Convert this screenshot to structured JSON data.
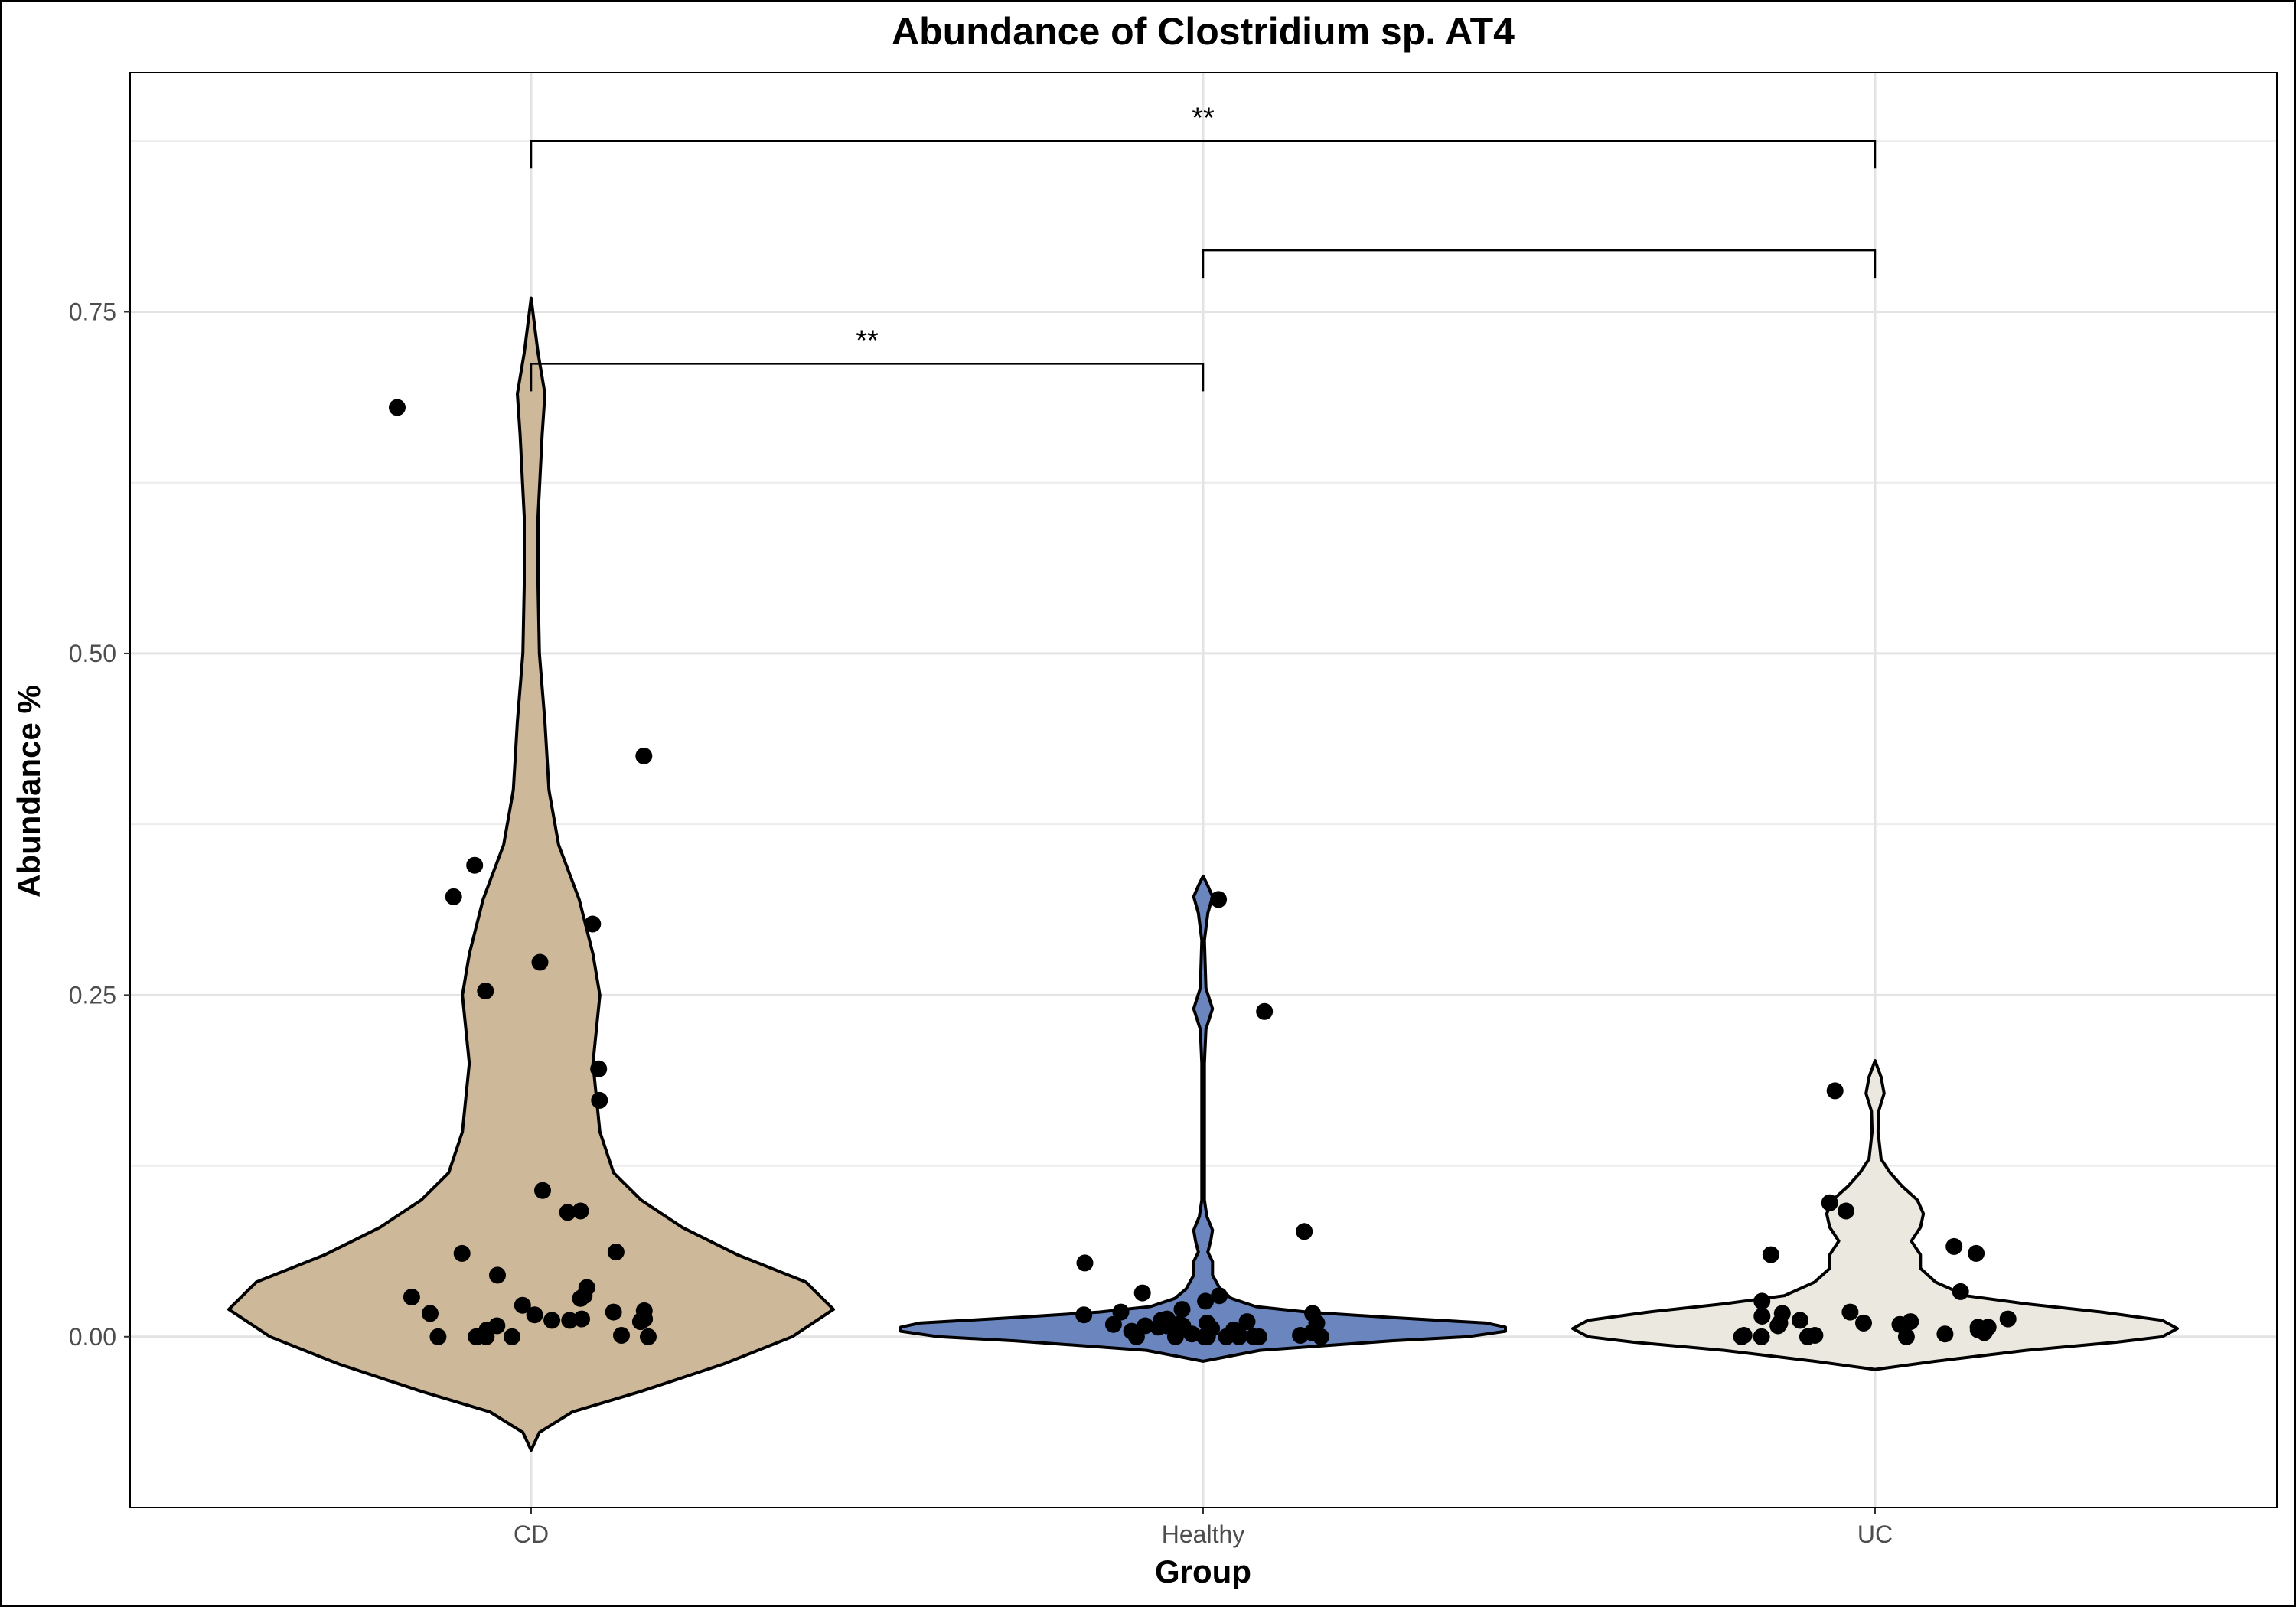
{
  "chart_data": {
    "type": "violin",
    "title": "Abundance of Clostridium sp. AT4",
    "xlabel": "Group",
    "ylabel": "Abundance %",
    "categories": [
      "CD",
      "Healthy",
      "UC"
    ],
    "ylim": [
      -0.125,
      0.925
    ],
    "yticks": [
      0.0,
      0.25,
      0.5,
      0.75
    ],
    "ytick_labels": [
      "0.00",
      "0.25",
      "0.50",
      "0.75"
    ],
    "grid": true,
    "legend": "none",
    "colors": {
      "CD": "#cdb899",
      "Healthy": "#6b86bf",
      "UC": "#ebe8e0"
    },
    "violins": [
      {
        "group": "CD",
        "range": [
          -0.083,
          0.76
        ],
        "profile": [
          [
            -0.083,
            0.0
          ],
          [
            -0.07,
            0.6
          ],
          [
            -0.055,
            3
          ],
          [
            -0.04,
            8
          ],
          [
            -0.02,
            14
          ],
          [
            0.0,
            19
          ],
          [
            0.02,
            22
          ],
          [
            0.04,
            20
          ],
          [
            0.06,
            15
          ],
          [
            0.08,
            11
          ],
          [
            0.1,
            8
          ],
          [
            0.12,
            6
          ],
          [
            0.15,
            5
          ],
          [
            0.2,
            4.5
          ],
          [
            0.25,
            5
          ],
          [
            0.28,
            4.5
          ],
          [
            0.32,
            3.5
          ],
          [
            0.36,
            2
          ],
          [
            0.4,
            1.3
          ],
          [
            0.45,
            1.0
          ],
          [
            0.5,
            0.6
          ],
          [
            0.55,
            0.5
          ],
          [
            0.6,
            0.5
          ],
          [
            0.66,
            0.8
          ],
          [
            0.69,
            1.0
          ],
          [
            0.72,
            0.5
          ],
          [
            0.76,
            0.0
          ]
        ]
      },
      {
        "group": "Healthy",
        "range": [
          -0.018,
          0.337
        ],
        "profile": [
          [
            -0.018,
            0.0
          ],
          [
            -0.01,
            30
          ],
          [
            -0.003,
            100
          ],
          [
            0.0,
            140
          ],
          [
            0.004,
            160
          ],
          [
            0.007,
            160
          ],
          [
            0.01,
            150
          ],
          [
            0.014,
            100
          ],
          [
            0.018,
            55
          ],
          [
            0.022,
            28
          ],
          [
            0.028,
            15
          ],
          [
            0.035,
            9
          ],
          [
            0.045,
            5
          ],
          [
            0.055,
            5
          ],
          [
            0.062,
            2.5
          ],
          [
            0.07,
            4
          ],
          [
            0.078,
            5
          ],
          [
            0.088,
            2
          ],
          [
            0.1,
            0.7
          ],
          [
            0.15,
            0.7
          ],
          [
            0.2,
            0.7
          ],
          [
            0.225,
            1.5
          ],
          [
            0.24,
            5
          ],
          [
            0.255,
            1.5
          ],
          [
            0.29,
            0.7
          ],
          [
            0.31,
            2.5
          ],
          [
            0.322,
            5
          ],
          [
            0.33,
            2.5
          ],
          [
            0.337,
            0.0
          ]
        ]
      },
      {
        "group": "UC",
        "range": [
          -0.024,
          0.202
        ],
        "profile": [
          [
            -0.024,
            0.0
          ],
          [
            -0.018,
            20
          ],
          [
            -0.01,
            50
          ],
          [
            -0.004,
            80
          ],
          [
            0.0,
            95
          ],
          [
            0.006,
            100
          ],
          [
            0.012,
            95
          ],
          [
            0.018,
            75
          ],
          [
            0.024,
            50
          ],
          [
            0.03,
            30
          ],
          [
            0.04,
            20
          ],
          [
            0.05,
            15
          ],
          [
            0.06,
            15
          ],
          [
            0.07,
            12
          ],
          [
            0.08,
            15
          ],
          [
            0.09,
            16
          ],
          [
            0.1,
            14
          ],
          [
            0.11,
            9
          ],
          [
            0.12,
            5
          ],
          [
            0.13,
            2
          ],
          [
            0.15,
            1
          ],
          [
            0.165,
            1.2
          ],
          [
            0.178,
            3
          ],
          [
            0.19,
            2
          ],
          [
            0.202,
            0.0
          ]
        ]
      }
    ],
    "points": [
      {
        "group": "CD",
        "y": 0.68
      },
      {
        "group": "CD",
        "y": 0.425
      },
      {
        "group": "CD",
        "y": 0.345
      },
      {
        "group": "CD",
        "y": 0.322
      },
      {
        "group": "CD",
        "y": 0.302
      },
      {
        "group": "CD",
        "y": 0.274
      },
      {
        "group": "CD",
        "y": 0.253
      },
      {
        "group": "CD",
        "y": 0.196
      },
      {
        "group": "CD",
        "y": 0.173
      },
      {
        "group": "CD",
        "y": 0.107
      },
      {
        "group": "CD",
        "y": 0.092
      },
      {
        "group": "CD",
        "y": 0.091
      },
      {
        "group": "CD",
        "y": 0.062
      },
      {
        "group": "CD",
        "y": 0.061
      },
      {
        "group": "CD",
        "y": 0.045
      },
      {
        "group": "CD",
        "y": 0.036
      },
      {
        "group": "CD",
        "y": 0.03
      },
      {
        "group": "CD",
        "y": 0.029
      },
      {
        "group": "CD",
        "y": 0.028
      },
      {
        "group": "CD",
        "y": 0.023
      },
      {
        "group": "CD",
        "y": 0.019
      },
      {
        "group": "CD",
        "y": 0.018
      },
      {
        "group": "CD",
        "y": 0.017
      },
      {
        "group": "CD",
        "y": 0.016
      },
      {
        "group": "CD",
        "y": 0.013
      },
      {
        "group": "CD",
        "y": 0.013
      },
      {
        "group": "CD",
        "y": 0.012
      },
      {
        "group": "CD",
        "y": 0.012
      },
      {
        "group": "CD",
        "y": 0.012
      },
      {
        "group": "CD",
        "y": 0.011
      },
      {
        "group": "CD",
        "y": 0.008
      },
      {
        "group": "CD",
        "y": 0.005
      },
      {
        "group": "CD",
        "y": 0.001
      },
      {
        "group": "CD",
        "y": 0.0
      },
      {
        "group": "CD",
        "y": 0.0
      },
      {
        "group": "CD",
        "y": 0.0
      },
      {
        "group": "CD",
        "y": 0.0
      },
      {
        "group": "CD",
        "y": 0.0
      },
      {
        "group": "CD",
        "y": 0.0
      },
      {
        "group": "Healthy",
        "y": 0.32
      },
      {
        "group": "Healthy",
        "y": 0.238
      },
      {
        "group": "Healthy",
        "y": 0.077
      },
      {
        "group": "Healthy",
        "y": 0.054
      },
      {
        "group": "Healthy",
        "y": 0.032
      },
      {
        "group": "Healthy",
        "y": 0.03
      },
      {
        "group": "Healthy",
        "y": 0.026
      },
      {
        "group": "Healthy",
        "y": 0.02
      },
      {
        "group": "Healthy",
        "y": 0.018
      },
      {
        "group": "Healthy",
        "y": 0.017
      },
      {
        "group": "Healthy",
        "y": 0.016
      },
      {
        "group": "Healthy",
        "y": 0.013
      },
      {
        "group": "Healthy",
        "y": 0.012
      },
      {
        "group": "Healthy",
        "y": 0.011
      },
      {
        "group": "Healthy",
        "y": 0.01
      },
      {
        "group": "Healthy",
        "y": 0.01
      },
      {
        "group": "Healthy",
        "y": 0.009
      },
      {
        "group": "Healthy",
        "y": 0.009
      },
      {
        "group": "Healthy",
        "y": 0.008
      },
      {
        "group": "Healthy",
        "y": 0.008
      },
      {
        "group": "Healthy",
        "y": 0.008
      },
      {
        "group": "Healthy",
        "y": 0.007
      },
      {
        "group": "Healthy",
        "y": 0.006
      },
      {
        "group": "Healthy",
        "y": 0.005
      },
      {
        "group": "Healthy",
        "y": 0.004
      },
      {
        "group": "Healthy",
        "y": 0.003
      },
      {
        "group": "Healthy",
        "y": 0.002
      },
      {
        "group": "Healthy",
        "y": 0.001
      },
      {
        "group": "Healthy",
        "y": 0.001
      },
      {
        "group": "Healthy",
        "y": 0.0
      },
      {
        "group": "Healthy",
        "y": 0.0
      },
      {
        "group": "Healthy",
        "y": 0.0
      },
      {
        "group": "Healthy",
        "y": 0.0
      },
      {
        "group": "Healthy",
        "y": 0.0
      },
      {
        "group": "Healthy",
        "y": 0.0
      },
      {
        "group": "Healthy",
        "y": 0.0
      },
      {
        "group": "Healthy",
        "y": 0.0
      },
      {
        "group": "Healthy",
        "y": 0.0
      },
      {
        "group": "UC",
        "y": 0.18
      },
      {
        "group": "UC",
        "y": 0.098
      },
      {
        "group": "UC",
        "y": 0.092
      },
      {
        "group": "UC",
        "y": 0.066
      },
      {
        "group": "UC",
        "y": 0.061
      },
      {
        "group": "UC",
        "y": 0.06
      },
      {
        "group": "UC",
        "y": 0.033
      },
      {
        "group": "UC",
        "y": 0.026
      },
      {
        "group": "UC",
        "y": 0.018
      },
      {
        "group": "UC",
        "y": 0.017
      },
      {
        "group": "UC",
        "y": 0.015
      },
      {
        "group": "UC",
        "y": 0.013
      },
      {
        "group": "UC",
        "y": 0.012
      },
      {
        "group": "UC",
        "y": 0.011
      },
      {
        "group": "UC",
        "y": 0.01
      },
      {
        "group": "UC",
        "y": 0.01
      },
      {
        "group": "UC",
        "y": 0.009
      },
      {
        "group": "UC",
        "y": 0.008
      },
      {
        "group": "UC",
        "y": 0.007
      },
      {
        "group": "UC",
        "y": 0.007
      },
      {
        "group": "UC",
        "y": 0.006
      },
      {
        "group": "UC",
        "y": 0.005
      },
      {
        "group": "UC",
        "y": 0.003
      },
      {
        "group": "UC",
        "y": 0.002
      },
      {
        "group": "UC",
        "y": 0.001
      },
      {
        "group": "UC",
        "y": 0.001
      },
      {
        "group": "UC",
        "y": 0.0
      },
      {
        "group": "UC",
        "y": 0.0
      },
      {
        "group": "UC",
        "y": 0.0
      },
      {
        "group": "UC",
        "y": 0.0
      }
    ],
    "significance": [
      {
        "from": "CD",
        "to": "UC",
        "y": 0.875,
        "label": "**"
      },
      {
        "from": "Healthy",
        "to": "UC",
        "y": 0.795,
        "label": ""
      },
      {
        "from": "CD",
        "to": "Healthy",
        "y": 0.712,
        "label": "**"
      }
    ]
  }
}
